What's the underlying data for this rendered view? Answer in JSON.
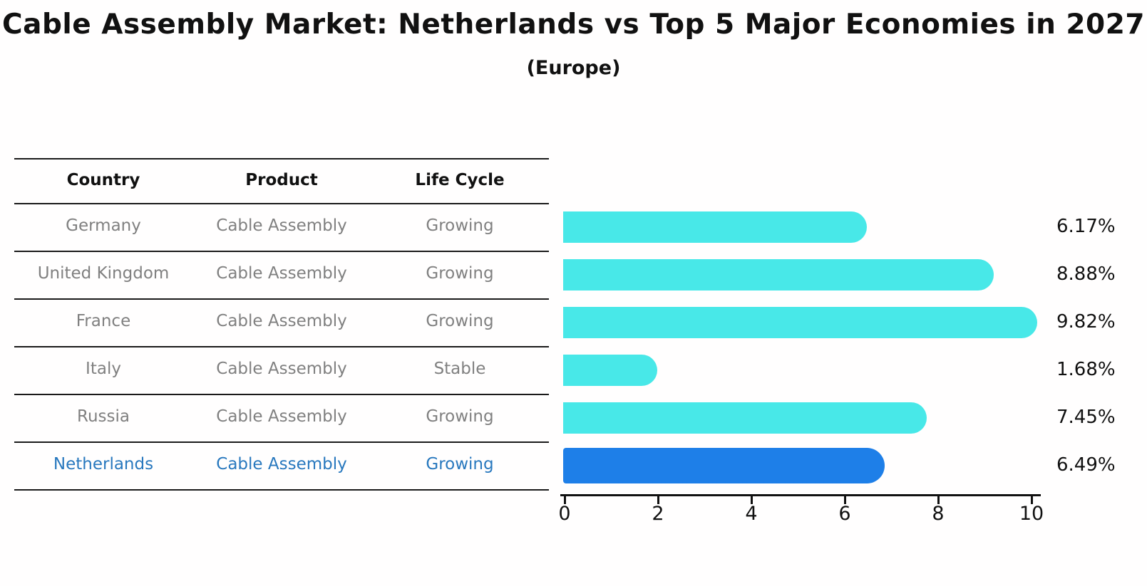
{
  "title": "Cable Assembly Market: Netherlands vs Top 5 Major Economies in 2027",
  "subtitle": "(Europe)",
  "table": {
    "headers": [
      "Country",
      "Product",
      "Life Cycle"
    ],
    "rows": [
      {
        "country": "Germany",
        "product": "Cable Assembly",
        "life_cycle": "Growing",
        "highlighted": false
      },
      {
        "country": "United Kingdom",
        "product": "Cable Assembly",
        "life_cycle": "Growing",
        "highlighted": false
      },
      {
        "country": "France",
        "product": "Cable Assembly",
        "life_cycle": "Growing",
        "highlighted": false
      },
      {
        "country": "Italy",
        "product": "Cable Assembly",
        "life_cycle": "Stable",
        "highlighted": false
      },
      {
        "country": "Russia",
        "product": "Cable Assembly",
        "life_cycle": "Growing",
        "highlighted": false
      },
      {
        "country": "Netherlands",
        "product": "Cable Assembly",
        "life_cycle": "Growing",
        "highlighted": true
      }
    ]
  },
  "chart_data": {
    "type": "bar",
    "orientation": "horizontal",
    "title": "Cable Assembly Market: Netherlands vs Top 5 Major Economies in 2027",
    "subtitle": "(Europe)",
    "categories": [
      "Germany",
      "United Kingdom",
      "France",
      "Italy",
      "Russia",
      "Netherlands"
    ],
    "values": [
      6.17,
      8.88,
      9.82,
      1.68,
      7.45,
      6.49
    ],
    "value_labels": [
      "6.17%",
      "8.88%",
      "9.82%",
      "1.68%",
      "7.45%",
      "6.49%"
    ],
    "xlim": [
      0,
      10.5
    ],
    "xticks": [
      0,
      2,
      4,
      6,
      8,
      10
    ],
    "grid": false,
    "legend": "none",
    "bar_color": "#48E8E8",
    "highlight_bar_color": "#1E7FE8",
    "highlight_index": 5
  },
  "colors": {
    "background": "#FFFEFE",
    "header_text": "#111111",
    "table_text": "#808080",
    "highlight_text": "#2878BE",
    "bar_cyan": "#48E8E8",
    "bar_blue": "#1E7FE8",
    "axis": "#111111"
  }
}
